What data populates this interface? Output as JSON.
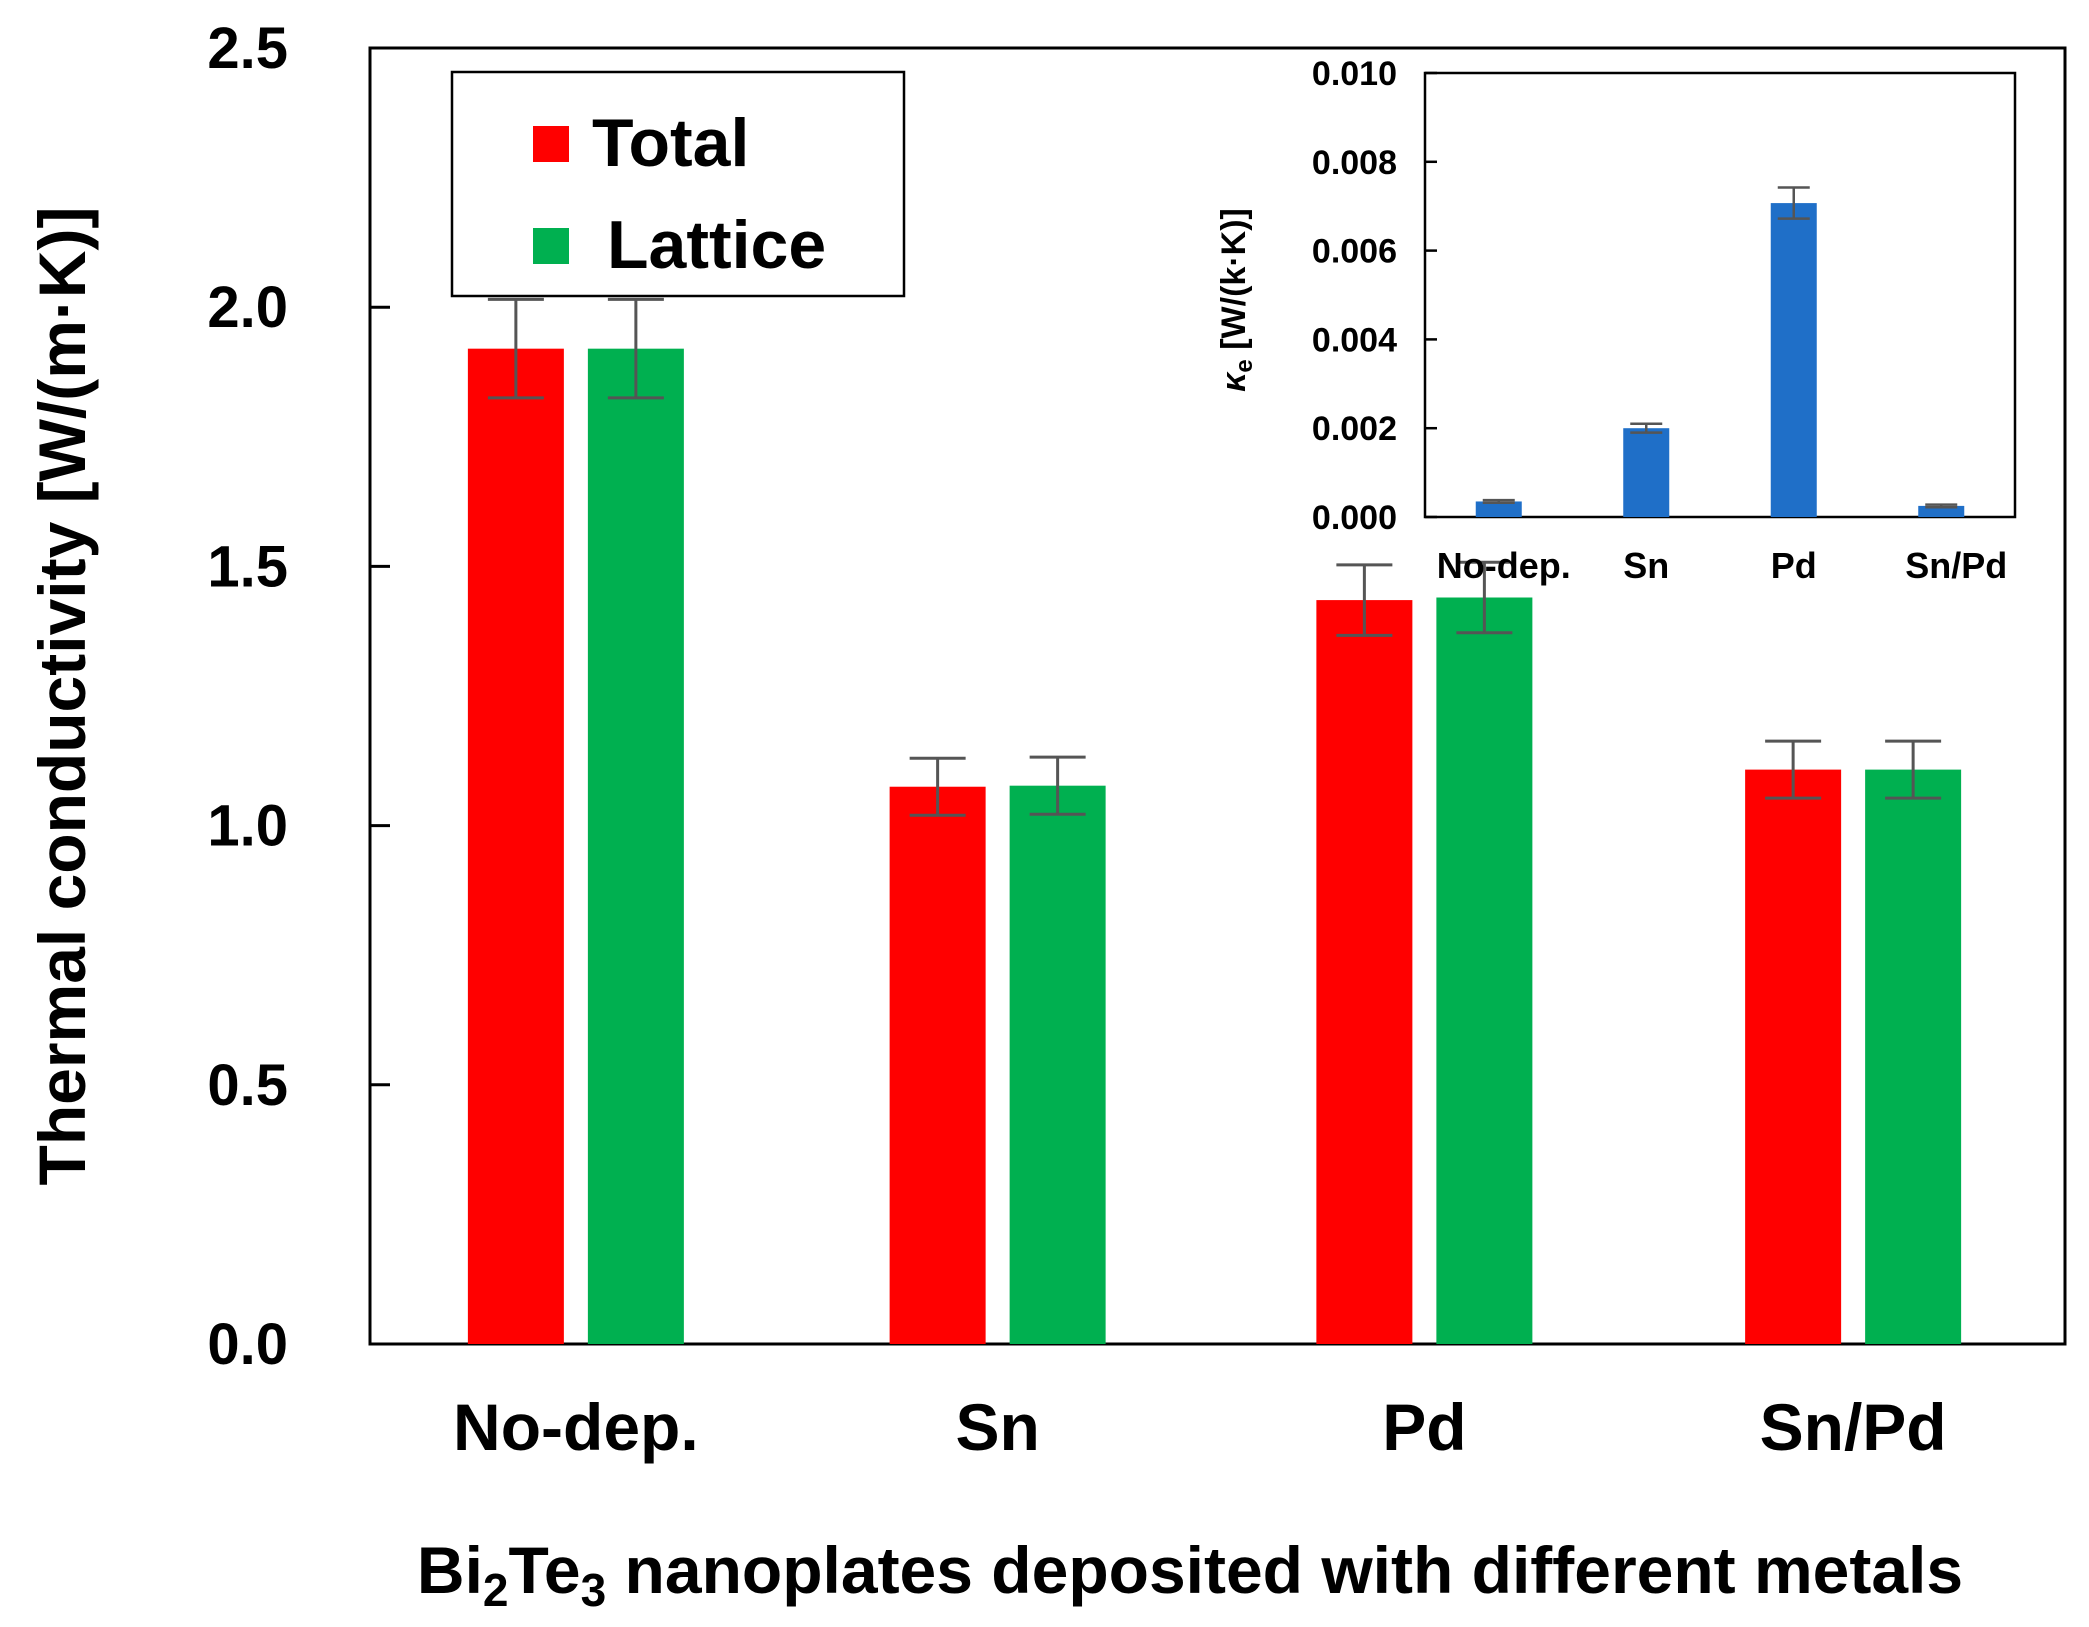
{
  "chart_data": [
    {
      "type": "bar",
      "title": "",
      "xlabel": "Bi₂Te₃ nanoplates deposited with different metals",
      "xlabel_parts": [
        "Bi",
        "2",
        "Te",
        "3",
        " nanoplates deposited with different metals"
      ],
      "ylabel": "Thermal conductivity [W/(m·K)]",
      "ylim": [
        0,
        2.5
      ],
      "yticks": [
        "0.0",
        "0.5",
        "1.0",
        "1.5",
        "2.0",
        "2.5"
      ],
      "categories": [
        "No-dep.",
        "Sn",
        "Pd",
        "Sn/Pd"
      ],
      "series": [
        {
          "name": "Total",
          "color": "#ff0000",
          "values": [
            1.92,
            1.075,
            1.435,
            1.108
          ],
          "errors": [
            0.095,
            0.055,
            0.068,
            0.055
          ]
        },
        {
          "name": "Lattice",
          "color": "#00b050",
          "values": [
            1.92,
            1.077,
            1.44,
            1.108
          ],
          "errors": [
            0.095,
            0.055,
            0.068,
            0.055
          ]
        }
      ],
      "legend": {
        "position": "top-left",
        "entries": [
          "Total",
          "Lattice"
        ]
      }
    },
    {
      "type": "bar",
      "title": "",
      "xlabel": "",
      "ylabel": "κe [W/(k·K)]",
      "ylabel_parts": [
        "κ",
        "e",
        " [W/(k·K)]"
      ],
      "ylim": [
        0,
        0.01
      ],
      "yticks": [
        "0.000",
        "0.002",
        "0.004",
        "0.006",
        "0.008",
        "0.010"
      ],
      "categories": [
        "No-dep.",
        "Sn",
        "Pd",
        "Sn/Pd"
      ],
      "series": [
        {
          "name": "κe",
          "color": "#1f6fc8",
          "values": [
            0.00035,
            0.002,
            0.00707,
            0.00025
          ],
          "errors": [
            3e-05,
            0.0001,
            0.00035,
            3e-05
          ]
        }
      ],
      "placement": "inset top-right"
    }
  ]
}
